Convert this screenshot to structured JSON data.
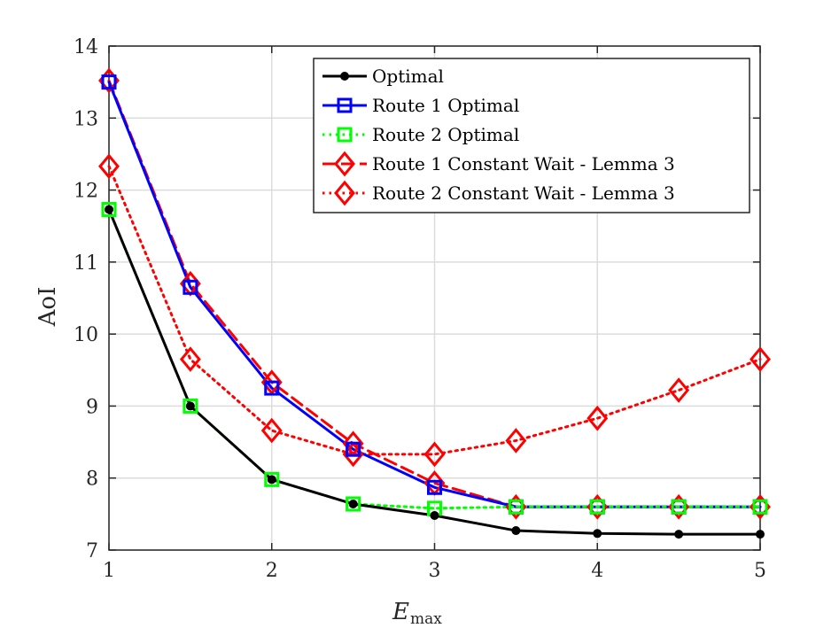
{
  "chart_data": {
    "type": "line",
    "title": "",
    "xlabel": "E",
    "xlabel_sub": "max",
    "ylabel": "AoI",
    "xlim": [
      1,
      5
    ],
    "ylim": [
      7,
      14
    ],
    "xticks": [
      1,
      2,
      3,
      4,
      5
    ],
    "yticks": [
      7,
      8,
      9,
      10,
      11,
      12,
      13,
      14
    ],
    "grid": true,
    "legend_position": "top-right",
    "x": [
      1,
      1.5,
      2,
      2.5,
      3,
      3.5,
      4,
      4.5,
      5
    ],
    "series": [
      {
        "name": "Optimal",
        "color": "#000000",
        "line": "solid",
        "marker": "dot",
        "values": [
          11.73,
          9.0,
          7.98,
          7.64,
          7.48,
          7.27,
          7.23,
          7.22,
          7.22
        ]
      },
      {
        "name": "Route 1 Optimal",
        "color": "#0000ff",
        "line": "solid",
        "marker": "square",
        "values": [
          13.5,
          10.65,
          9.25,
          8.4,
          7.87,
          7.6,
          7.6,
          7.6,
          7.6
        ]
      },
      {
        "name": "Route 2 Optimal",
        "color": "#00ff00",
        "line": "dotted",
        "marker": "square",
        "values": [
          11.73,
          9.0,
          7.98,
          7.64,
          7.58,
          7.6,
          7.6,
          7.6,
          7.6
        ]
      },
      {
        "name": "Route 1 Constant Wait - Lemma 3",
        "color": "#ff0000",
        "line": "dashed",
        "marker": "diamond",
        "values": [
          13.52,
          10.7,
          9.33,
          8.48,
          7.93,
          7.6,
          7.6,
          7.6,
          7.6
        ]
      },
      {
        "name": "Route 2 Constant Wait - Lemma 3",
        "color": "#ff0000",
        "line": "dotted",
        "marker": "diamond",
        "values": [
          12.33,
          9.65,
          8.66,
          8.33,
          8.33,
          8.52,
          8.83,
          9.22,
          9.65
        ]
      }
    ]
  }
}
